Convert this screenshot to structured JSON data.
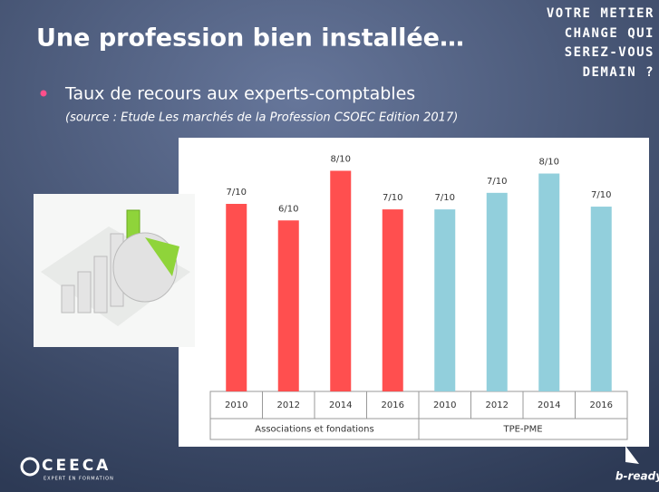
{
  "slide": {
    "title": "Une profession bien installée…",
    "tagline": [
      "VOTRE METIER",
      "CHANGE QUI",
      "SEREZ-VOUS",
      "DEMAIN ?"
    ],
    "bullet": "Taux de recours aux experts-comptables",
    "source": "(source : Etude Les marchés de la Profession CSOEC Edition 2017)",
    "logo_left": "CEECA",
    "logo_left_sub": "EXPERT EN FORMATION",
    "logo_right": "b-ready"
  },
  "chart_data": {
    "type": "bar",
    "ylim": [
      0,
      9.1
    ],
    "groups": [
      {
        "name": "Associations et fondations",
        "color": "#ff4f4f",
        "categories": [
          "2010",
          "2012",
          "2014",
          "2016"
        ],
        "values": [
          6.8,
          6.2,
          8.0,
          6.6
        ],
        "value_labels": [
          "7/10",
          "6/10",
          "8/10",
          "7/10"
        ]
      },
      {
        "name": "TPE-PME",
        "color": "#92cfdc",
        "categories": [
          "2010",
          "2012",
          "2014",
          "2016"
        ],
        "values": [
          6.6,
          7.2,
          7.9,
          6.7
        ],
        "value_labels": [
          "7/10",
          "7/10",
          "8/10",
          "7/10"
        ]
      }
    ]
  }
}
